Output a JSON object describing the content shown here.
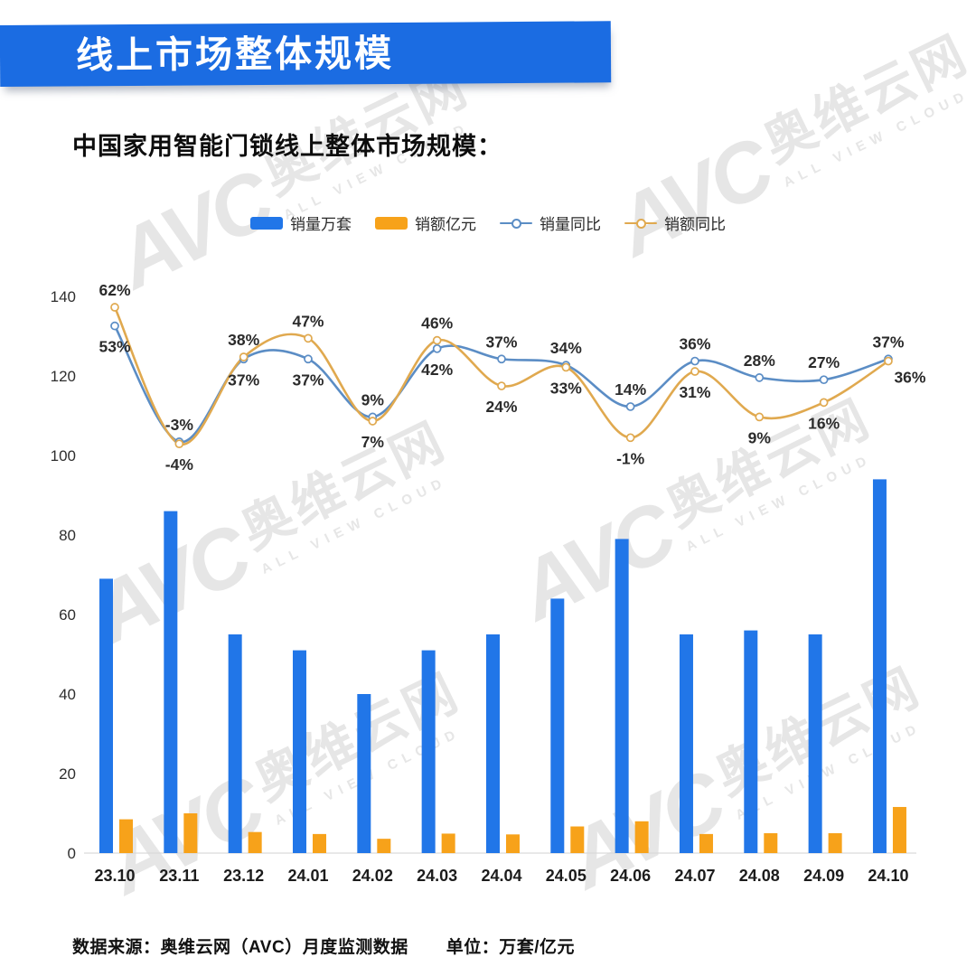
{
  "header": {
    "title": "线上市场整体规模"
  },
  "subtitle": "中国家用智能门锁线上整体市场规模：",
  "watermark": {
    "logo": "AVC",
    "name": "奥维云网",
    "tagline": "ALL VIEW CLOUD"
  },
  "legend": {
    "items": [
      {
        "label": "销量万套",
        "type": "bar",
        "color": "#2176e8"
      },
      {
        "label": "销额亿元",
        "type": "bar",
        "color": "#f7a21a"
      },
      {
        "label": "销量同比",
        "type": "line",
        "color": "#5b8dc5"
      },
      {
        "label": "销额同比",
        "type": "line",
        "color": "#e0a94f"
      }
    ]
  },
  "chart_data": {
    "type": "combo-bar-line",
    "categories": [
      "23.10",
      "23.11",
      "23.12",
      "24.01",
      "24.02",
      "24.03",
      "24.04",
      "24.05",
      "24.06",
      "24.07",
      "24.08",
      "24.09",
      "24.10"
    ],
    "bar_series": [
      {
        "name": "销量万套",
        "color": "#2176e8",
        "values": [
          69,
          86,
          55,
          51,
          40,
          51,
          55,
          64,
          79,
          55,
          56,
          55,
          94
        ]
      },
      {
        "name": "销额亿元",
        "color": "#f7a21a",
        "values": [
          8.5,
          10,
          5.3,
          4.8,
          3.6,
          4.9,
          4.7,
          6.7,
          8,
          4.8,
          5,
          5,
          11.6
        ]
      }
    ],
    "line_series": [
      {
        "name": "销量同比",
        "color": "#5b8dc5",
        "unit": "%",
        "values": [
          53,
          -3,
          37,
          37,
          9,
          42,
          37,
          34,
          14,
          36,
          28,
          27,
          37
        ]
      },
      {
        "name": "销额同比",
        "color": "#e0a94f",
        "unit": "%",
        "values": [
          62,
          -4,
          38,
          47,
          7,
          46,
          24,
          33,
          -1,
          31,
          9,
          16,
          36
        ]
      }
    ],
    "y_axis": {
      "ticks": [
        0,
        20,
        40,
        60,
        80,
        100,
        120,
        140
      ],
      "range": [
        0,
        140
      ]
    },
    "grid": false,
    "legend_position": "top",
    "title": "中国家用智能门锁线上整体市场规模"
  },
  "footer": {
    "source": "数据来源：奥维云网（AVC）月度监测数据",
    "unit": "单位：万套/亿元"
  }
}
